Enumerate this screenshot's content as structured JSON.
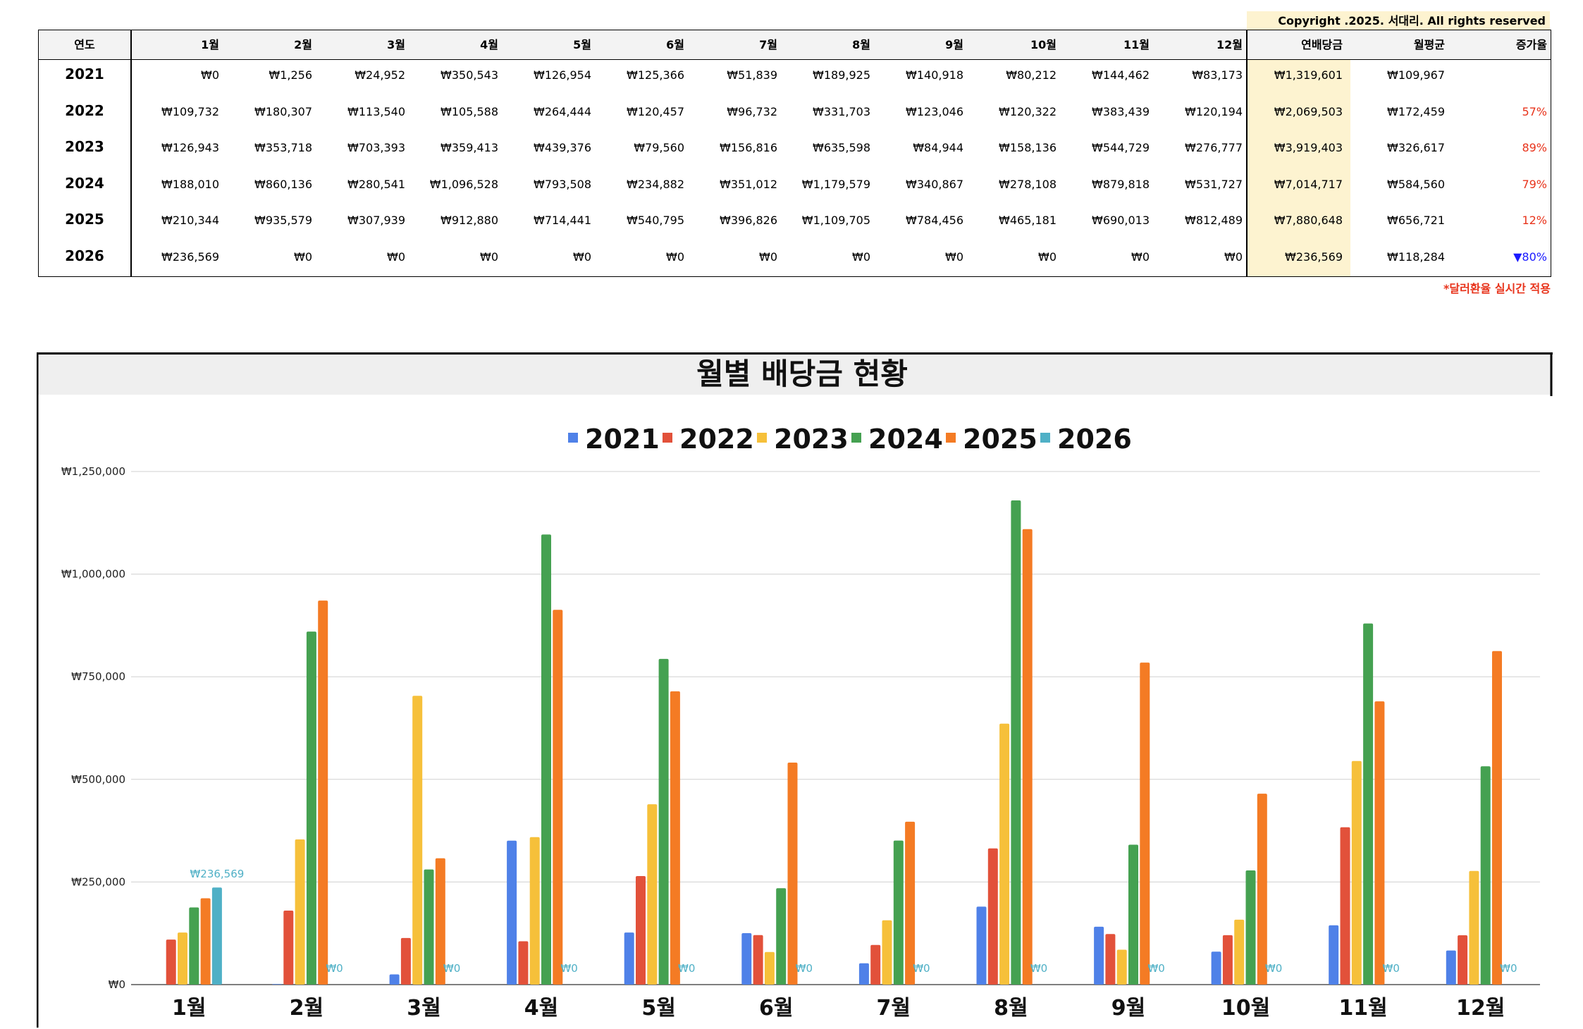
{
  "copyright": "Copyright .2025. 서대리. All rights reserved",
  "table": {
    "headers": [
      "연도",
      "1월",
      "2월",
      "3월",
      "4월",
      "5월",
      "6월",
      "7월",
      "8월",
      "9월",
      "10월",
      "11월",
      "12월",
      "연배당금",
      "월평균",
      "증가율"
    ],
    "rows": [
      {
        "year": "2021",
        "months": [
          "₩0",
          "₩1,256",
          "₩24,952",
          "₩350,543",
          "₩126,954",
          "₩125,366",
          "₩51,839",
          "₩189,925",
          "₩140,918",
          "₩80,212",
          "₩144,462",
          "₩83,173"
        ],
        "annual": "₩1,319,601",
        "avg": "₩109,967",
        "growth": "",
        "growth_dir": "none"
      },
      {
        "year": "2022",
        "months": [
          "₩109,732",
          "₩180,307",
          "₩113,540",
          "₩105,588",
          "₩264,444",
          "₩120,457",
          "₩96,732",
          "₩331,703",
          "₩123,046",
          "₩120,322",
          "₩383,439",
          "₩120,194"
        ],
        "annual": "₩2,069,503",
        "avg": "₩172,459",
        "growth": "57%",
        "growth_dir": "up"
      },
      {
        "year": "2023",
        "months": [
          "₩126,943",
          "₩353,718",
          "₩703,393",
          "₩359,413",
          "₩439,376",
          "₩79,560",
          "₩156,816",
          "₩635,598",
          "₩84,944",
          "₩158,136",
          "₩544,729",
          "₩276,777"
        ],
        "annual": "₩3,919,403",
        "avg": "₩326,617",
        "growth": "89%",
        "growth_dir": "up"
      },
      {
        "year": "2024",
        "months": [
          "₩188,010",
          "₩860,136",
          "₩280,541",
          "₩1,096,528",
          "₩793,508",
          "₩234,882",
          "₩351,012",
          "₩1,179,579",
          "₩340,867",
          "₩278,108",
          "₩879,818",
          "₩531,727"
        ],
        "annual": "₩7,014,717",
        "avg": "₩584,560",
        "growth": "79%",
        "growth_dir": "up"
      },
      {
        "year": "2025",
        "months": [
          "₩210,344",
          "₩935,579",
          "₩307,939",
          "₩912,880",
          "₩714,441",
          "₩540,795",
          "₩396,826",
          "₩1,109,705",
          "₩784,456",
          "₩465,181",
          "₩690,013",
          "₩812,489"
        ],
        "annual": "₩7,880,648",
        "avg": "₩656,721",
        "growth": "12%",
        "growth_dir": "up"
      },
      {
        "year": "2026",
        "months": [
          "₩236,569",
          "₩0",
          "₩0",
          "₩0",
          "₩0",
          "₩0",
          "₩0",
          "₩0",
          "₩0",
          "₩0",
          "₩0",
          "₩0"
        ],
        "annual": "₩236,569",
        "avg": "₩118,284",
        "growth": "▼80%",
        "growth_dir": "down"
      }
    ],
    "note": "*달러환율 실시간 적용"
  },
  "chart_data": {
    "type": "bar",
    "title": "월별 배당금 현황",
    "categories": [
      "1월",
      "2월",
      "3월",
      "4월",
      "5월",
      "6월",
      "7월",
      "8월",
      "9월",
      "10월",
      "11월",
      "12월"
    ],
    "series": [
      {
        "name": "2021",
        "color": "#4f81e8",
        "values": [
          0,
          1256,
          24952,
          350543,
          126954,
          125366,
          51839,
          189925,
          140918,
          80212,
          144462,
          83173
        ]
      },
      {
        "name": "2022",
        "color": "#e2513a",
        "values": [
          109732,
          180307,
          113540,
          105588,
          264444,
          120457,
          96732,
          331703,
          123046,
          120322,
          383439,
          120194
        ]
      },
      {
        "name": "2023",
        "color": "#f6c03a",
        "values": [
          126943,
          353718,
          703393,
          359413,
          439376,
          79560,
          156816,
          635598,
          84944,
          158136,
          544729,
          276777
        ]
      },
      {
        "name": "2024",
        "color": "#45a151",
        "values": [
          188010,
          860136,
          280541,
          1096528,
          793508,
          234882,
          351012,
          1179579,
          340867,
          278108,
          879818,
          531727
        ]
      },
      {
        "name": "2025",
        "color": "#f47b24",
        "values": [
          210344,
          935579,
          307939,
          912880,
          714441,
          540795,
          396826,
          1109705,
          784456,
          465181,
          690013,
          812489
        ]
      },
      {
        "name": "2026",
        "color": "#4fb0c6",
        "values": [
          236569,
          0,
          0,
          0,
          0,
          0,
          0,
          0,
          0,
          0,
          0,
          0
        ]
      }
    ],
    "data_labels_series": "2026",
    "data_labels": [
      "₩236,569",
      "₩0",
      "₩0",
      "₩0",
      "₩0",
      "₩0",
      "₩0",
      "₩0",
      "₩0",
      "₩0",
      "₩0",
      "₩0"
    ],
    "yticks": [
      0,
      250000,
      500000,
      750000,
      1000000,
      1250000
    ],
    "ytick_labels": [
      "₩0",
      "₩250,000",
      "₩500,000",
      "₩750,000",
      "₩1,000,000",
      "₩1,250,000"
    ],
    "ylim": [
      0,
      1250000
    ],
    "grid": true,
    "legend_position": "top"
  }
}
